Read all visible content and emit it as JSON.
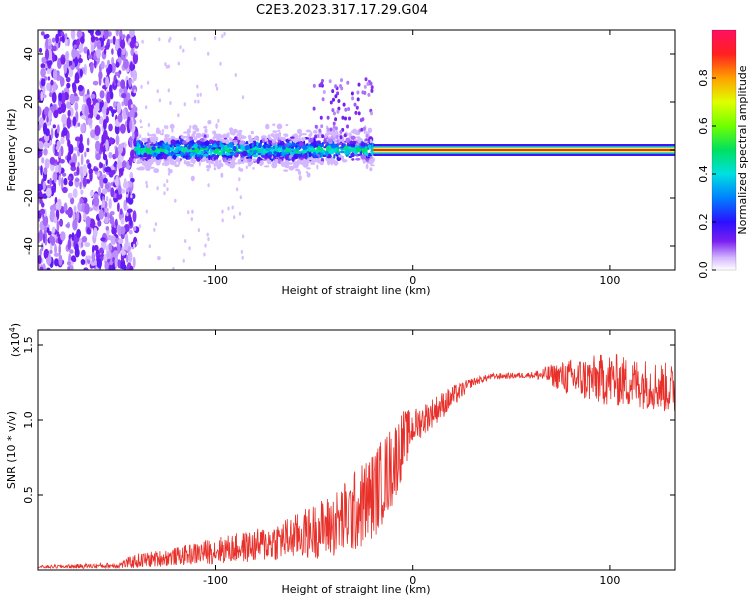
{
  "title": "C2E3.2023.317.17.29.G04",
  "chart_data": [
    {
      "type": "heatmap",
      "xlabel": "Height of straight line (km)",
      "ylabel": "Frequency (Hz)",
      "xlim": [
        -190,
        133
      ],
      "ylim": [
        -50,
        50
      ],
      "xticks": [
        -100,
        0,
        100
      ],
      "yticks": [
        -40,
        -20,
        0,
        20,
        40
      ],
      "colorbar": {
        "label": "Normalized spectral amplitude",
        "range": [
          0,
          1
        ],
        "ticks": [
          "0.0",
          "0.2",
          "0.4",
          "0.6",
          "0.8"
        ]
      },
      "segments": [
        {
          "x_range": [
            -190,
            -140
          ],
          "description_values": {
            "freq_spread": 50,
            "amplitude": 0.1
          }
        },
        {
          "x_range": [
            -140,
            -20
          ],
          "description_values": {
            "freq_center": 0,
            "freq_spread": 6,
            "amplitude": 0.35
          }
        },
        {
          "x_range": [
            -20,
            133
          ],
          "description_values": {
            "freq_center": 0,
            "freq_spread": 1,
            "amplitude": 0.95
          }
        }
      ]
    },
    {
      "type": "line",
      "xlabel": "Height of straight line (km)",
      "ylabel": "SNR (10 * v/v)",
      "ymultiplier": "(x10",
      "ymultiplier_exp": "4",
      "ymultiplier_close": ")",
      "xlim": [
        -190,
        133
      ],
      "ylim": [
        0,
        1.6
      ],
      "xticks": [
        -100,
        0,
        100
      ],
      "yticks": [
        0.5,
        1.0,
        1.5
      ],
      "ytick_labels": [
        "0.5",
        "1.0",
        "1.5"
      ],
      "series_color": "#e8302a",
      "envelope": {
        "x": [
          -190,
          -150,
          -140,
          -120,
          -100,
          -80,
          -60,
          -40,
          -30,
          -20,
          -10,
          -5,
          0,
          10,
          20,
          30,
          40,
          60,
          70,
          80,
          90,
          100,
          110,
          120,
          133
        ],
        "mean": [
          0.02,
          0.03,
          0.06,
          0.09,
          0.13,
          0.16,
          0.22,
          0.3,
          0.38,
          0.5,
          0.7,
          0.85,
          0.95,
          1.05,
          1.15,
          1.25,
          1.29,
          1.3,
          1.3,
          1.28,
          1.27,
          1.27,
          1.25,
          1.24,
          1.2
        ],
        "spread": [
          0.01,
          0.02,
          0.05,
          0.06,
          0.09,
          0.11,
          0.15,
          0.22,
          0.28,
          0.3,
          0.28,
          0.22,
          0.12,
          0.1,
          0.08,
          0.03,
          0.02,
          0.02,
          0.07,
          0.13,
          0.16,
          0.18,
          0.17,
          0.17,
          0.17
        ]
      }
    }
  ]
}
